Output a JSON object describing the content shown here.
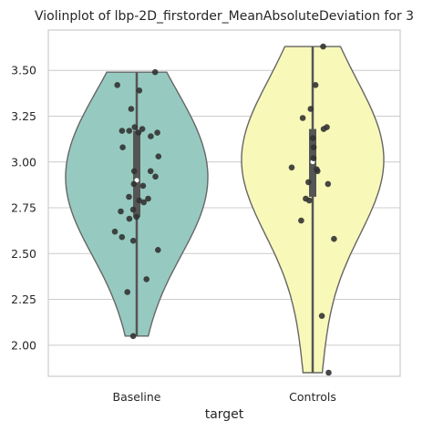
{
  "chart_data": {
    "type": "violin",
    "title": "Violinplot of lbp-2D_firstorder_MeanAbsoluteDeviation for 3",
    "xlabel": "target",
    "ylabel": "",
    "categories": [
      "Baseline",
      "Controls"
    ],
    "ylim": [
      1.83,
      3.72
    ],
    "yticks": [
      2.0,
      2.25,
      2.5,
      2.75,
      3.0,
      3.25,
      3.5
    ],
    "ytick_labels": [
      "2.00",
      "2.25",
      "2.50",
      "2.75",
      "3.00",
      "3.25",
      "3.50"
    ],
    "grid": true,
    "series": [
      {
        "category": "Baseline",
        "color": "#96cac0",
        "range": [
          2.05,
          3.49
        ],
        "quartiles": [
          2.7,
          2.9,
          3.17
        ],
        "median": 2.9,
        "points": [
          3.49,
          3.42,
          3.39,
          3.29,
          3.19,
          3.18,
          3.17,
          3.17,
          3.16,
          3.16,
          3.14,
          3.08,
          3.03,
          2.95,
          2.95,
          2.92,
          2.88,
          2.87,
          2.81,
          2.8,
          2.79,
          2.78,
          2.74,
          2.73,
          2.69,
          2.7,
          2.62,
          2.59,
          2.57,
          2.52,
          2.36,
          2.29,
          2.05
        ]
      },
      {
        "category": "Controls",
        "color": "#f8f8b9",
        "range": [
          1.85,
          3.63
        ],
        "quartiles": [
          2.81,
          3.0,
          3.18
        ],
        "median": 3.0,
        "points": [
          3.63,
          3.42,
          3.29,
          3.24,
          3.19,
          3.18,
          3.13,
          3.08,
          3.02,
          2.97,
          2.96,
          2.95,
          2.89,
          2.88,
          2.8,
          2.79,
          2.68,
          2.58,
          2.16,
          1.85
        ]
      }
    ]
  }
}
